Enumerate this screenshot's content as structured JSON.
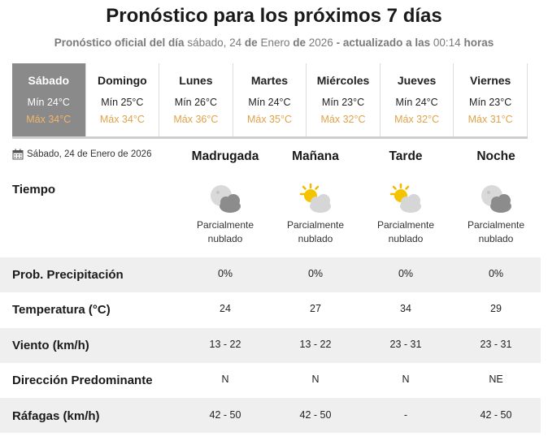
{
  "header": {
    "title": "Pronóstico para los próximos 7 días",
    "sub_prefix": "Pronóstico oficial del día",
    "sub_day": "sábado, 24",
    "sub_de1": "de",
    "sub_month": "Enero",
    "sub_de2": "de",
    "sub_year": "2026",
    "sub_updated": "- actualizado a las",
    "sub_time": "00:14",
    "sub_hours": "horas"
  },
  "days": [
    {
      "name": "Sábado",
      "min": "Mín 24°C",
      "max": "Máx 34°C",
      "active": true
    },
    {
      "name": "Domingo",
      "min": "Mín 25°C",
      "max": "Máx 34°C"
    },
    {
      "name": "Lunes",
      "min": "Mín 26°C",
      "max": "Máx 36°C"
    },
    {
      "name": "Martes",
      "min": "Mín 24°C",
      "max": "Máx 35°C"
    },
    {
      "name": "Miércoles",
      "min": "Mín 23°C",
      "max": "Máx 32°C"
    },
    {
      "name": "Jueves",
      "min": "Mín 24°C",
      "max": "Máx 32°C"
    },
    {
      "name": "Viernes",
      "min": "Mín 23°C",
      "max": "Máx 31°C"
    }
  ],
  "detail": {
    "date": "Sábado, 24 de Enero de 2026",
    "periods": [
      "Madrugada",
      "Mañana",
      "Tarde",
      "Noche"
    ],
    "labels": {
      "weather": "Tiempo",
      "precip": "Prob. Precipitación",
      "temp": "Temperatura (°C)",
      "wind": "Viento (km/h)",
      "direction": "Dirección Predominante",
      "gusts": "Ráfagas (km/h)"
    },
    "weather": [
      {
        "icon": "moon-cloud-icon",
        "line1": "Parcialmente",
        "line2": "nublado"
      },
      {
        "icon": "sun-cloud-icon",
        "line1": "Parcialmente",
        "line2": "nublado"
      },
      {
        "icon": "sun-cloud-icon",
        "line1": "Parcialmente",
        "line2": "nublado"
      },
      {
        "icon": "moon-cloud-icon",
        "line1": "Parcialmente",
        "line2": "nublado"
      }
    ],
    "precip": [
      "0%",
      "0%",
      "0%",
      "0%"
    ],
    "temp": [
      "24",
      "27",
      "34",
      "29"
    ],
    "wind": [
      "13 - 22",
      "13 - 22",
      "23 - 31",
      "23 - 31"
    ],
    "direction": [
      "N",
      "N",
      "N",
      "NE"
    ],
    "gusts": [
      "42 - 50",
      "42 - 50",
      "-",
      "42 - 50"
    ]
  },
  "colors": {
    "active_tab": "#8a8a8a",
    "max_temp": "#e0a24a",
    "stripe": "#efefef"
  }
}
